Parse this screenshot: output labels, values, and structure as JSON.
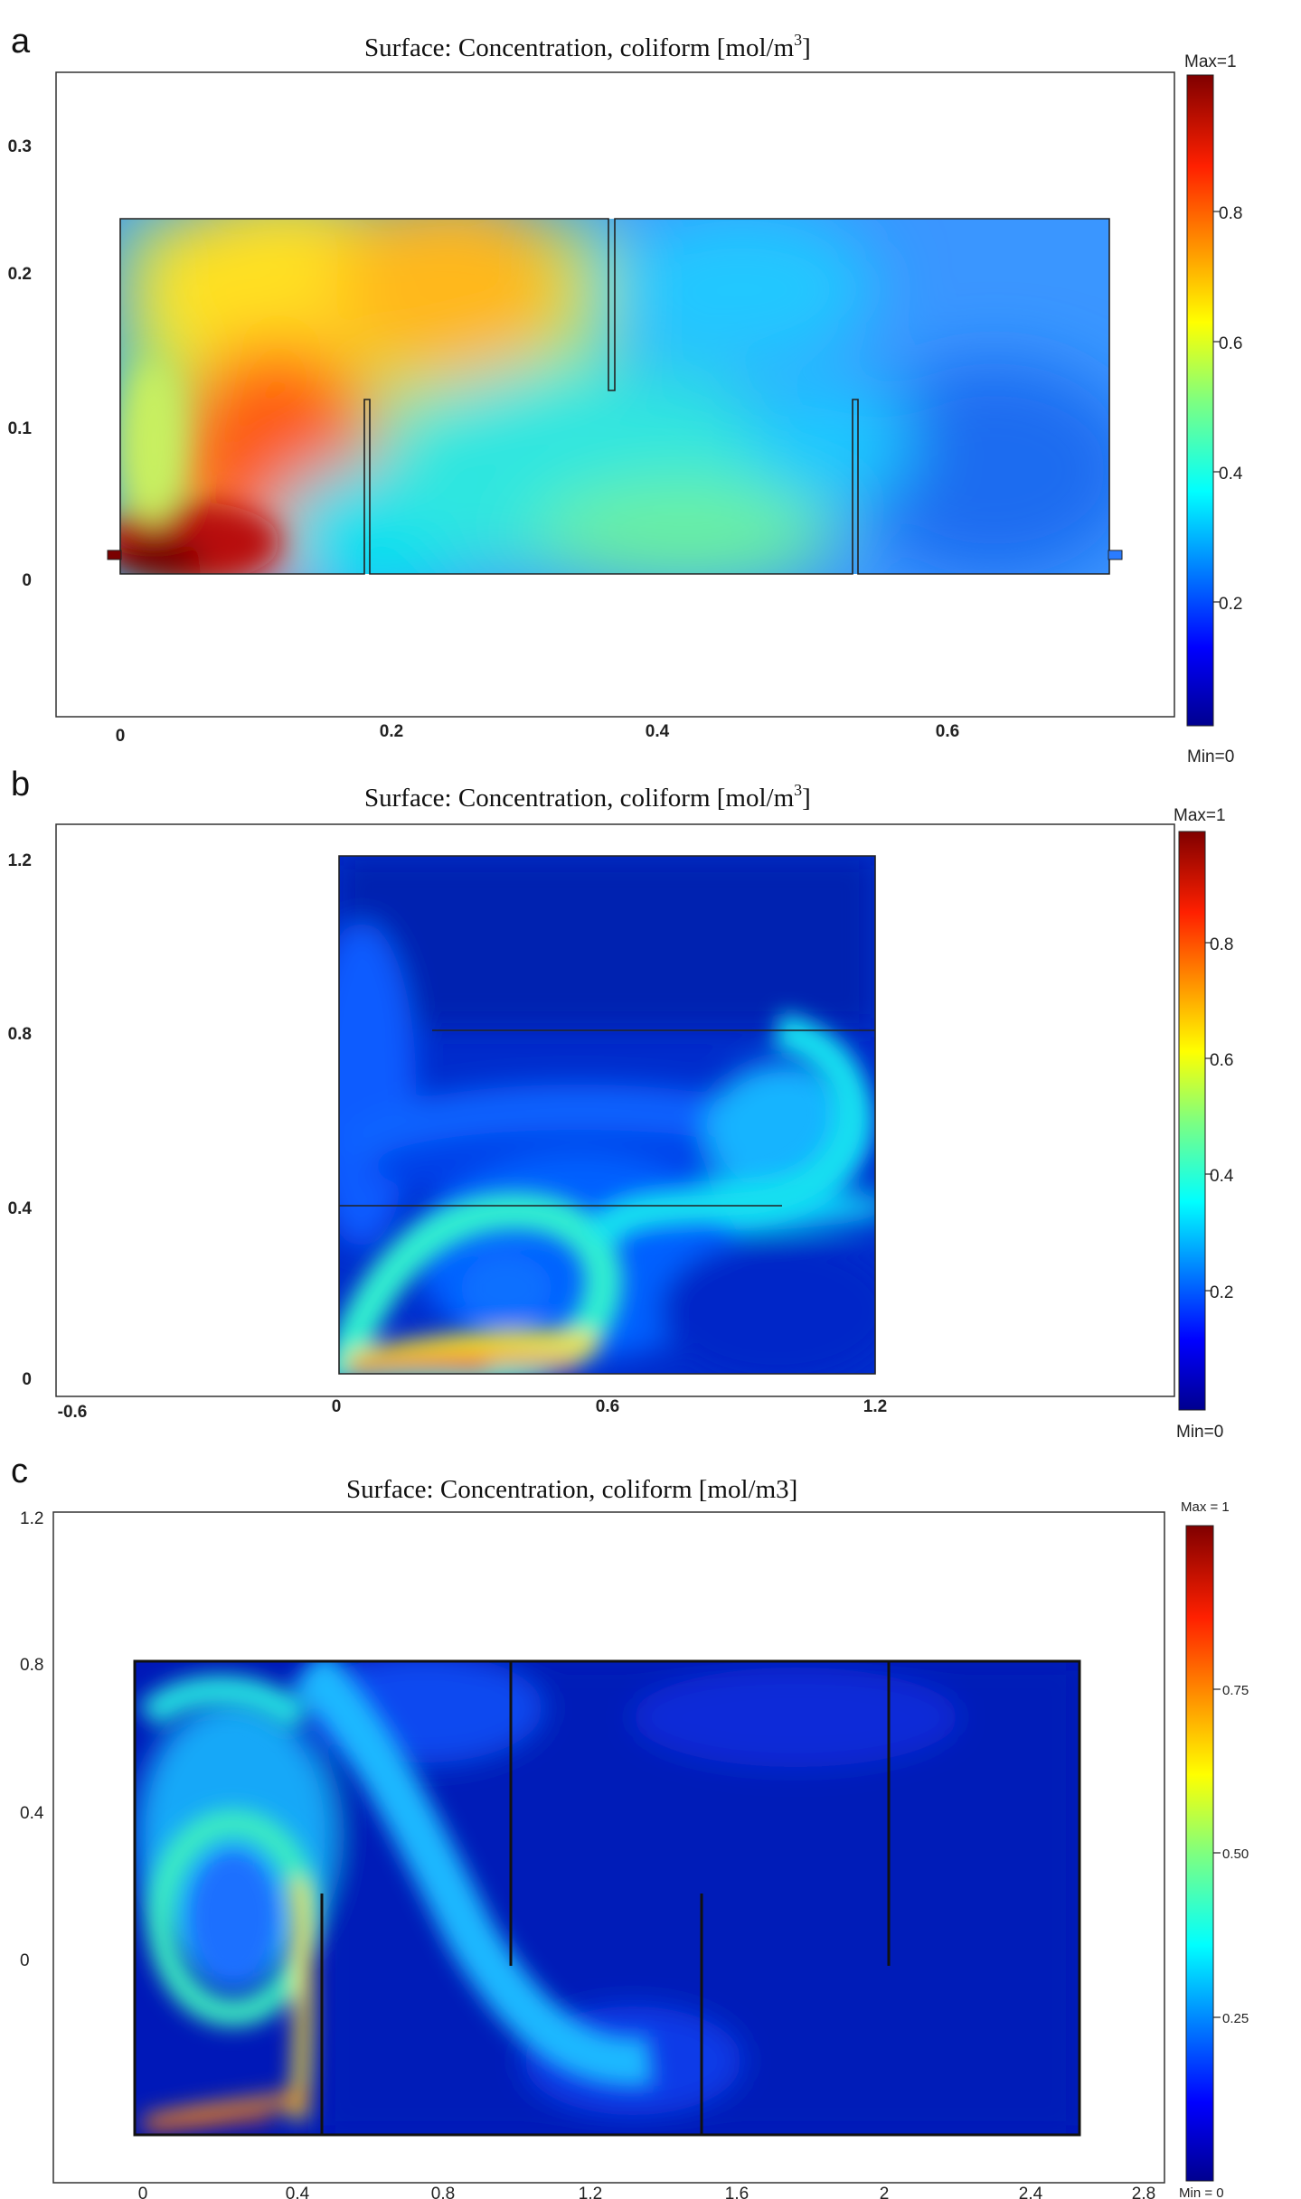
{
  "chart_data": [
    {
      "type": "heatmap",
      "panel_label": "a",
      "title": "Surface: Concentration, coliform [mol/m",
      "title_sup": "3",
      "title_tail": "]",
      "x_ticks": [
        "0",
        "0.2",
        "0.4",
        "0.6"
      ],
      "y_ticks": [
        "0.3",
        "0.2",
        "0.1",
        "0"
      ],
      "colorbar": {
        "max_label": "Max=1",
        "min_label": "Min=0",
        "ticks": [
          "0.8",
          "0.6",
          "0.4",
          "0.2"
        ],
        "range": [
          0,
          1
        ]
      }
    },
    {
      "type": "heatmap",
      "panel_label": "b",
      "title": "Surface: Concentration, coliform [mol/m",
      "title_sup": "3",
      "title_tail": "]",
      "x_ticks": [
        "-0.6",
        "0",
        "0.6",
        "1.2"
      ],
      "y_ticks": [
        "1.2",
        "0.8",
        "0.4",
        "0"
      ],
      "colorbar": {
        "max_label": "Max=1",
        "min_label": "Min=0",
        "ticks": [
          "0.8",
          "0.6",
          "0.4",
          "0.2"
        ],
        "range": [
          0,
          1
        ]
      }
    },
    {
      "type": "heatmap",
      "panel_label": "c",
      "title": "Surface: Concentration, coliform [mol/m3]",
      "x_ticks": [
        "0",
        "0.4",
        "0.8",
        "1.2",
        "1.6",
        "2",
        "2.4",
        "2.8"
      ],
      "y_ticks": [
        "1.2",
        "0.8",
        "0.4",
        "0"
      ],
      "colorbar": {
        "max_label": "Max = 1",
        "min_label": "Min = 0",
        "ticks": [
          "0.75",
          "0.50",
          "0.25"
        ],
        "range": [
          0,
          1
        ]
      }
    }
  ],
  "colors": {
    "high": "#8b0000",
    "mid": "#00e5ff",
    "low": "#00008f"
  }
}
